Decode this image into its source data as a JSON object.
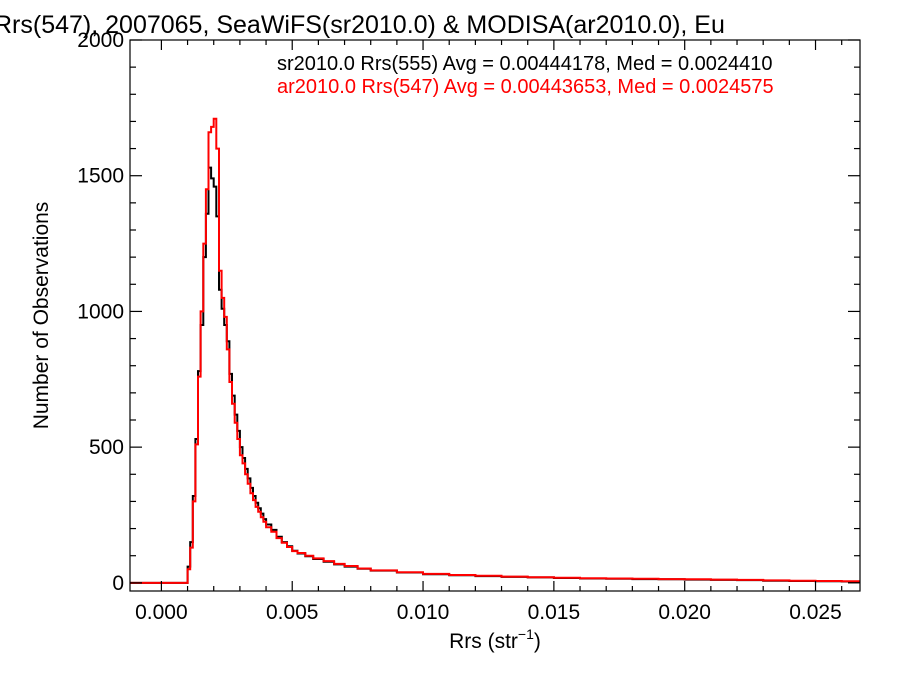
{
  "chart_data": {
    "type": "line",
    "style": "step-histogram",
    "title": "Rrs(547), 2007065, SeaWiFS(sr2010.0) & MODISA(ar2010.0), Eu",
    "xlabel_main": "Rrs (str",
    "xlabel_sup": "−1",
    "xlabel_close": ")",
    "ylabel": "Number of Observations",
    "xlim": [
      -0.0012,
      0.0267
    ],
    "ylim": [
      -30,
      2000
    ],
    "x_ticks": [
      0.0,
      0.005,
      0.01,
      0.015,
      0.02,
      0.025
    ],
    "x_tick_labels": [
      "0.000",
      "0.005",
      "0.010",
      "0.015",
      "0.020",
      "0.025"
    ],
    "y_ticks": [
      0,
      500,
      1000,
      1500,
      2000
    ],
    "y_tick_labels": [
      "0",
      "500",
      "1000",
      "1500",
      "2000"
    ],
    "grid": false,
    "legend_position": "top-right",
    "series": [
      {
        "name": "sr2010.0 Rrs(555) Avg = 0.00444178, Med = 0.0024410",
        "color": "#000000",
        "points": [
          [
            -0.0012,
            0
          ],
          [
            0.0009,
            0
          ],
          [
            0.001,
            60
          ],
          [
            0.0011,
            150
          ],
          [
            0.0012,
            320
          ],
          [
            0.0013,
            530
          ],
          [
            0.0014,
            780
          ],
          [
            0.0015,
            950
          ],
          [
            0.0016,
            1200
          ],
          [
            0.0017,
            1360
          ],
          [
            0.0018,
            1530
          ],
          [
            0.0019,
            1490
          ],
          [
            0.002,
            1460
          ],
          [
            0.0021,
            1350
          ],
          [
            0.0022,
            1080
          ],
          [
            0.0023,
            1010
          ],
          [
            0.0024,
            950
          ],
          [
            0.0025,
            890
          ],
          [
            0.0026,
            770
          ],
          [
            0.0027,
            690
          ],
          [
            0.0028,
            620
          ],
          [
            0.0029,
            560
          ],
          [
            0.003,
            500
          ],
          [
            0.0031,
            460
          ],
          [
            0.0032,
            420
          ],
          [
            0.0033,
            385
          ],
          [
            0.0034,
            350
          ],
          [
            0.0035,
            320
          ],
          [
            0.0036,
            295
          ],
          [
            0.0037,
            275
          ],
          [
            0.0038,
            255
          ],
          [
            0.0039,
            235
          ],
          [
            0.004,
            215
          ],
          [
            0.0042,
            195
          ],
          [
            0.0044,
            170
          ],
          [
            0.0046,
            150
          ],
          [
            0.0048,
            135
          ],
          [
            0.005,
            118
          ],
          [
            0.0052,
            108
          ],
          [
            0.0055,
            98
          ],
          [
            0.0058,
            88
          ],
          [
            0.0062,
            78
          ],
          [
            0.0066,
            68
          ],
          [
            0.007,
            60
          ],
          [
            0.0075,
            52
          ],
          [
            0.008,
            45
          ],
          [
            0.009,
            38
          ],
          [
            0.01,
            32
          ],
          [
            0.011,
            28
          ],
          [
            0.012,
            25
          ],
          [
            0.013,
            22
          ],
          [
            0.014,
            20
          ],
          [
            0.015,
            18
          ],
          [
            0.016,
            16
          ],
          [
            0.017,
            15
          ],
          [
            0.018,
            14
          ],
          [
            0.019,
            13
          ],
          [
            0.02,
            12
          ],
          [
            0.021,
            11
          ],
          [
            0.022,
            10
          ],
          [
            0.023,
            8
          ],
          [
            0.024,
            7
          ],
          [
            0.025,
            6
          ],
          [
            0.026,
            5
          ],
          [
            0.0267,
            5
          ]
        ]
      },
      {
        "name": "ar2010.0 Rrs(547) Avg = 0.00443653, Med = 0.0024575",
        "color": "#ff0000",
        "points": [
          [
            -0.0012,
            0
          ],
          [
            0.0009,
            0
          ],
          [
            0.001,
            50
          ],
          [
            0.0011,
            130
          ],
          [
            0.0012,
            300
          ],
          [
            0.0013,
            510
          ],
          [
            0.0014,
            760
          ],
          [
            0.0015,
            1000
          ],
          [
            0.0016,
            1250
          ],
          [
            0.0017,
            1450
          ],
          [
            0.0018,
            1660
          ],
          [
            0.0019,
            1680
          ],
          [
            0.002,
            1710
          ],
          [
            0.0021,
            1600
          ],
          [
            0.0022,
            1150
          ],
          [
            0.0023,
            1050
          ],
          [
            0.0024,
            980
          ],
          [
            0.0025,
            860
          ],
          [
            0.0026,
            740
          ],
          [
            0.0027,
            660
          ],
          [
            0.0028,
            590
          ],
          [
            0.0029,
            530
          ],
          [
            0.003,
            470
          ],
          [
            0.0031,
            440
          ],
          [
            0.0032,
            400
          ],
          [
            0.0033,
            365
          ],
          [
            0.0034,
            330
          ],
          [
            0.0035,
            305
          ],
          [
            0.0036,
            280
          ],
          [
            0.0037,
            262
          ],
          [
            0.0038,
            242
          ],
          [
            0.0039,
            225
          ],
          [
            0.004,
            205
          ],
          [
            0.0042,
            188
          ],
          [
            0.0044,
            165
          ],
          [
            0.0046,
            148
          ],
          [
            0.0048,
            132
          ],
          [
            0.005,
            117
          ],
          [
            0.0052,
            110
          ],
          [
            0.0055,
            100
          ],
          [
            0.0058,
            90
          ],
          [
            0.0062,
            80
          ],
          [
            0.0066,
            70
          ],
          [
            0.007,
            62
          ],
          [
            0.0075,
            53
          ],
          [
            0.008,
            46
          ],
          [
            0.009,
            39
          ],
          [
            0.01,
            33
          ],
          [
            0.011,
            29
          ],
          [
            0.012,
            26
          ],
          [
            0.013,
            23
          ],
          [
            0.014,
            21
          ],
          [
            0.015,
            19
          ],
          [
            0.016,
            17
          ],
          [
            0.017,
            16
          ],
          [
            0.018,
            15
          ],
          [
            0.019,
            14
          ],
          [
            0.02,
            13
          ],
          [
            0.021,
            12
          ],
          [
            0.022,
            11
          ],
          [
            0.023,
            9
          ],
          [
            0.024,
            8
          ],
          [
            0.025,
            7
          ],
          [
            0.026,
            6
          ],
          [
            0.0267,
            6
          ]
        ]
      }
    ]
  }
}
